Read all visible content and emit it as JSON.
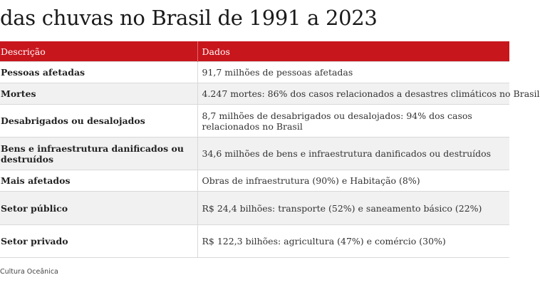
{
  "title": "das chuvas no Brasil de 1991 a 2023",
  "table": {
    "headers": [
      "Descrição",
      "Dados"
    ],
    "rows": [
      {
        "label": "Pessoas afetadas",
        "value": "91,7 milhões de pessoas afetadas"
      },
      {
        "label": "Mortes",
        "value": "4.247 mortes: 86% dos casos relacionados a desastres climáticos no Brasil"
      },
      {
        "label": "Desabrigados ou desalojados",
        "value": "8,7 milhões de desabrigados ou desalojados: 94% dos casos relacionados no Brasil"
      },
      {
        "label": "Bens e infraestrutura danificados ou destruídos",
        "value": "34,6 milhões de bens e infraestrutura danificados ou destruídos"
      },
      {
        "label": "Mais afetados",
        "value": "Obras de infraestrutura (90%) e Habitação (8%)"
      },
      {
        "label": "Setor público",
        "value": "R$ 24,4 bilhões: transporte (52%) e saneamento básico (22%)"
      },
      {
        "label": "Setor privado",
        "value": "R$ 122,3 bilhões: agricultura (47%) e comércio (30%)"
      }
    ]
  },
  "source": "Cultura Oceânica",
  "colors": {
    "header_background": "#c8161d",
    "header_text": "#ffffff",
    "row_alt_background": "#f1f1f1"
  }
}
